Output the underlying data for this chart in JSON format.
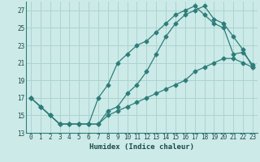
{
  "xlabel": "Humidex (Indice chaleur)",
  "bg_color": "#cceae8",
  "grid_color": "#aad4d0",
  "line_color": "#2e7d7a",
  "xlim": [
    -0.5,
    23.5
  ],
  "ylim": [
    13,
    28
  ],
  "xticks": [
    0,
    1,
    2,
    3,
    4,
    5,
    6,
    7,
    8,
    9,
    10,
    11,
    12,
    13,
    14,
    15,
    16,
    17,
    18,
    19,
    20,
    21,
    22,
    23
  ],
  "yticks": [
    13,
    15,
    17,
    19,
    21,
    23,
    25,
    27
  ],
  "line1_x": [
    0,
    1,
    2,
    3,
    4,
    5,
    6,
    7,
    8,
    9,
    10,
    11,
    12,
    13,
    14,
    15,
    16,
    17,
    18,
    19,
    20,
    21,
    22,
    23
  ],
  "line1_y": [
    17,
    16,
    15,
    14,
    14,
    14,
    14,
    17,
    18.5,
    21,
    22,
    23,
    23.5,
    24.5,
    25.5,
    26.5,
    27,
    27.5,
    26.5,
    25.5,
    25,
    22,
    22.2,
    20.8
  ],
  "line2_x": [
    0,
    1,
    2,
    3,
    4,
    5,
    6,
    7,
    8,
    9,
    10,
    11,
    12,
    13,
    14,
    15,
    16,
    17,
    18,
    19,
    20,
    21,
    22,
    23
  ],
  "line2_y": [
    17,
    16,
    15,
    14,
    14,
    14,
    14,
    14,
    15.5,
    16,
    17.5,
    18.5,
    20,
    22,
    24,
    25.5,
    26.5,
    27,
    27.5,
    26,
    25.5,
    24,
    22.5,
    20.5
  ],
  "line3_x": [
    0,
    1,
    2,
    3,
    4,
    5,
    6,
    7,
    8,
    9,
    10,
    11,
    12,
    13,
    14,
    15,
    16,
    17,
    18,
    19,
    20,
    21,
    22,
    23
  ],
  "line3_y": [
    17,
    16,
    15,
    14,
    14,
    14,
    14,
    14,
    15,
    15.5,
    16,
    16.5,
    17,
    17.5,
    18,
    18.5,
    19,
    20,
    20.5,
    21,
    21.5,
    21.5,
    21,
    20.5
  ]
}
